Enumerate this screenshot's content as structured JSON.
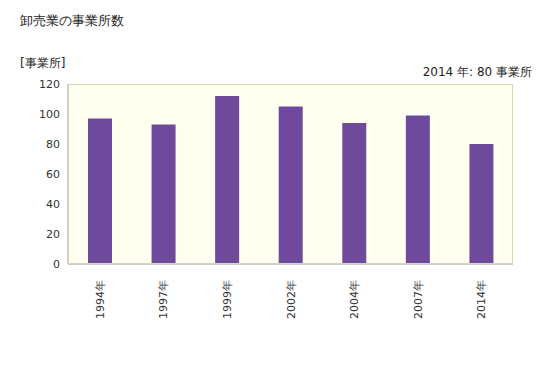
{
  "chart_data": {
    "type": "bar",
    "title": "卸売業の事業所数",
    "y_label": "[事業所]",
    "annotation": "2014 年: 80 事業所",
    "categories": [
      "1994年",
      "1997年",
      "1999年",
      "2002年",
      "2004年",
      "2007年",
      "2014年"
    ],
    "values": [
      97,
      93,
      112,
      105,
      94,
      99,
      80
    ],
    "color": "#6f4a9c",
    "ylim": [
      0,
      120
    ],
    "yticks": [
      0,
      20,
      40,
      60,
      80,
      100,
      120
    ],
    "grid": false
  }
}
